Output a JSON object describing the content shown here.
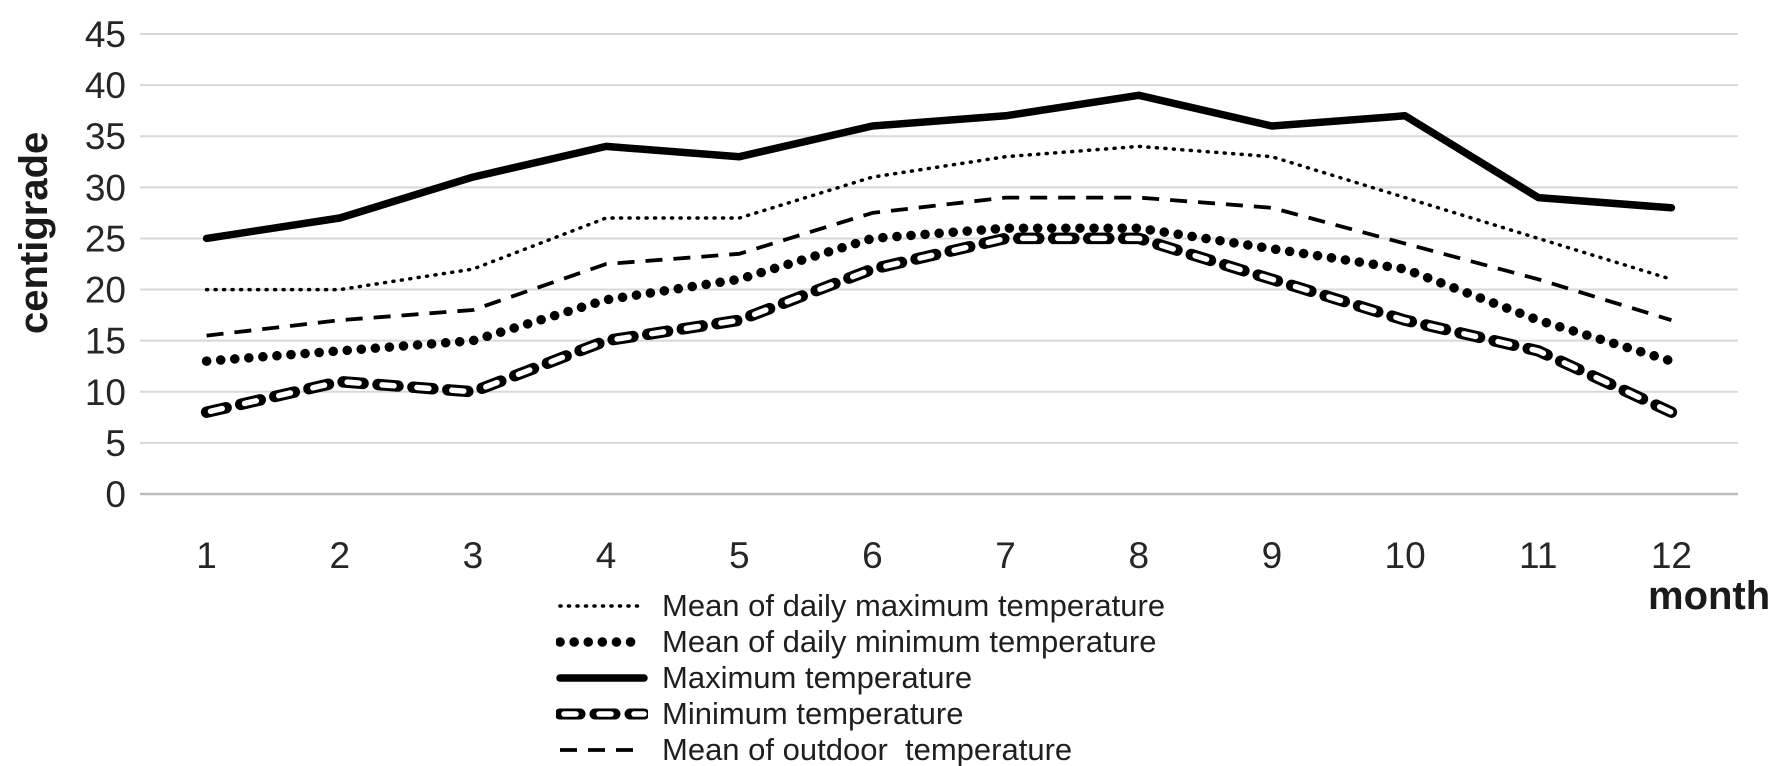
{
  "chart_data": {
    "type": "line",
    "title": "",
    "xlabel": "month",
    "ylabel": "centigrade",
    "categories": [
      1,
      2,
      3,
      4,
      5,
      6,
      7,
      8,
      9,
      10,
      11,
      12
    ],
    "y_ticks": [
      0,
      5,
      10,
      15,
      20,
      25,
      30,
      35,
      40,
      45
    ],
    "ylim": [
      0,
      45
    ],
    "grid": true,
    "grid_color": "#d8d8d8",
    "axis_line_color": "#bdbdbd",
    "line_color": "#000000",
    "tick_label_color": "#262626",
    "legend_position": "bottom-center",
    "series": [
      {
        "name": "Mean of daily maximum temperature",
        "style": "fine-dotted",
        "values": [
          20,
          20,
          22,
          27,
          27,
          31,
          33,
          34,
          33,
          29,
          25,
          21
        ]
      },
      {
        "name": "Mean of daily minimum temperature",
        "style": "round-dots",
        "values": [
          13,
          14,
          15,
          19,
          21,
          25,
          26,
          26,
          24,
          22,
          17,
          13
        ]
      },
      {
        "name": "Maximum temperature",
        "style": "solid-thick",
        "values": [
          25,
          27,
          31,
          34,
          33,
          36,
          37,
          39,
          36,
          37,
          29,
          28
        ]
      },
      {
        "name": "Minimum temperature",
        "style": "hollow-dashes",
        "values": [
          8,
          11,
          10,
          15,
          17,
          22,
          25,
          25,
          21,
          17,
          14,
          8
        ]
      },
      {
        "name": "Mean of outdoor  temperature",
        "style": "thin-dashes",
        "values": [
          15.5,
          17,
          18,
          22.5,
          23.5,
          27.5,
          29,
          29,
          28,
          24.5,
          21,
          17
        ]
      }
    ]
  }
}
